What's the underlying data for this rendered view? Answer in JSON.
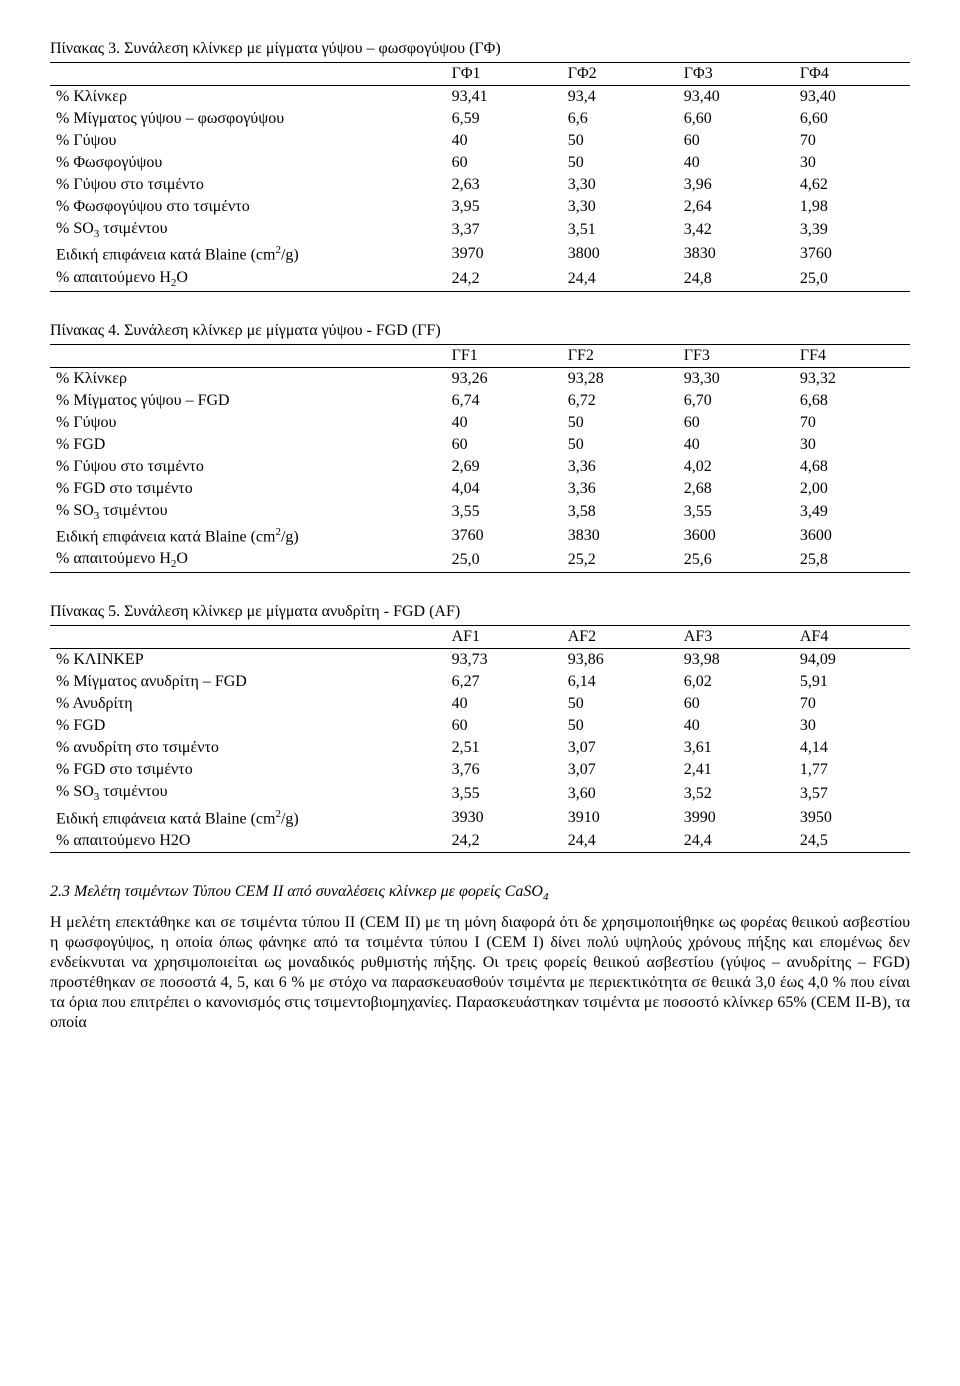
{
  "table3": {
    "title": "Πίνακας 3. Συνάλεση κλίνκερ με μίγματα γύψου – φωσφογύψου (ΓΦ)",
    "headers": [
      "ΓΦ1",
      "ΓΦ2",
      "ΓΦ3",
      "ΓΦ4"
    ],
    "rows": [
      {
        "label": "% Κλίνκερ",
        "v": [
          "93,41",
          "93,4",
          "93,40",
          "93,40"
        ]
      },
      {
        "label": "% Μίγματος γύψου – φωσφογύψου",
        "v": [
          "6,59",
          "6,6",
          "6,60",
          "6,60"
        ]
      },
      {
        "label": "% Γύψου",
        "v": [
          "40",
          "50",
          "60",
          "70"
        ]
      },
      {
        "label": "% Φωσφογύψου",
        "v": [
          "60",
          "50",
          "40",
          "30"
        ]
      },
      {
        "label": "% Γύψου στο τσιμέντο",
        "v": [
          "2,63",
          "3,30",
          "3,96",
          "4,62"
        ]
      },
      {
        "label": "% Φωσφογύψου στο τσιμέντο",
        "v": [
          "3,95",
          "3,30",
          "2,64",
          "1,98"
        ]
      },
      {
        "label_html": "so3",
        "v": [
          "3,37",
          "3,51",
          "3,42",
          "3,39"
        ]
      },
      {
        "label_html": "blaine",
        "v": [
          "3970",
          "3800",
          "3830",
          "3760"
        ]
      },
      {
        "label_html": "h2o",
        "v": [
          "24,2",
          "24,4",
          "24,8",
          "25,0"
        ]
      }
    ]
  },
  "table4": {
    "title": "Πίνακας 4. Συνάλεση κλίνκερ με μίγματα γύψου - FGD (ΓF)",
    "headers": [
      "ΓF1",
      "ΓF2",
      "ΓF3",
      "ΓF4"
    ],
    "rows": [
      {
        "label": "% Κλίνκερ",
        "v": [
          "93,26",
          "93,28",
          "93,30",
          "93,32"
        ]
      },
      {
        "label": "% Μίγματος γύψου – FGD",
        "v": [
          "6,74",
          "6,72",
          "6,70",
          "6,68"
        ]
      },
      {
        "label": "% Γύψου",
        "v": [
          "40",
          "50",
          "60",
          "70"
        ]
      },
      {
        "label": "% FGD",
        "v": [
          "60",
          "50",
          "40",
          "30"
        ]
      },
      {
        "label": "% Γύψου στο τσιμέντο",
        "v": [
          "2,69",
          "3,36",
          "4,02",
          "4,68"
        ]
      },
      {
        "label": "% FGD στο τσιμέντο",
        "v": [
          "4,04",
          "3,36",
          "2,68",
          "2,00"
        ]
      },
      {
        "label_html": "so3",
        "v": [
          "3,55",
          "3,58",
          "3,55",
          "3,49"
        ]
      },
      {
        "label_html": "blaine",
        "v": [
          "3760",
          "3830",
          "3600",
          "3600"
        ]
      },
      {
        "label_html": "h2o",
        "v": [
          "25,0",
          "25,2",
          "25,6",
          "25,8"
        ]
      }
    ]
  },
  "table5": {
    "title": "Πίνακας 5. Συνάλεση κλίνκερ με μίγματα ανυδρίτη - FGD (ΑF)",
    "headers": [
      "ΑF1",
      "ΑF2",
      "ΑF3",
      "ΑF4"
    ],
    "rows": [
      {
        "label": "% ΚΛΙΝΚΕΡ",
        "v": [
          "93,73",
          "93,86",
          "93,98",
          "94,09"
        ]
      },
      {
        "label": "% Μίγματος ανυδρίτη – FGD",
        "v": [
          "6,27",
          "6,14",
          "6,02",
          "5,91"
        ]
      },
      {
        "label": "% Ανυδρίτη",
        "v": [
          "40",
          "50",
          "60",
          "70"
        ]
      },
      {
        "label": "% FGD",
        "v": [
          "60",
          "50",
          "40",
          "30"
        ]
      },
      {
        "label": "% ανυδρίτη στο τσιμέντο",
        "v": [
          "2,51",
          "3,07",
          "3,61",
          "4,14"
        ]
      },
      {
        "label": "% FGD στο τσιμέντο",
        "v": [
          "3,76",
          "3,07",
          "2,41",
          "1,77"
        ]
      },
      {
        "label_html": "so3",
        "v": [
          "3,55",
          "3,60",
          "3,52",
          "3,57"
        ]
      },
      {
        "label_html": "blaine",
        "v": [
          "3930",
          "3910",
          "3990",
          "3950"
        ]
      },
      {
        "label": "% απαιτούμενο H2O",
        "v": [
          "24,2",
          "24,4",
          "24,4",
          "24,5"
        ]
      }
    ]
  },
  "labels_html": {
    "so3": "% SO<span class=\"sub\">3</span> τσιμέντου",
    "blaine": "Ειδική επιφάνεια κατά Blaine (cm<span class=\"sup\">2</span>/g)",
    "h2o": "% απαιτούμενο H<span class=\"sub\">2</span>O"
  },
  "section": {
    "title_html": "2.3 Μελέτη τσιμέντων Τύπου CEM II από συναλέσεις κλίνκερ με φορείς CaSO<span class=\"sub\">4</span>",
    "paragraph": "Η μελέτη επεκτάθηκε και σε τσιμέντα τύπου II (CEM II) με τη μόνη διαφορά ότι δε χρησιμοποιήθηκε ως φορέας θειικού ασβεστίου η φωσφογύψος, η οποία όπως φάνηκε από τα τσιμέντα τύπου I (CEM I) δίνει πολύ υψηλούς χρόνους πήξης και επομένως δεν ενδείκνυται να χρησιμοποιείται ως μοναδικός ρυθμιστής πήξης. Οι τρεις φορείς θειικού ασβεστίου (γύψος – ανυδρίτης – FGD) προστέθηκαν σε ποσοστά 4, 5, και 6 % με στόχο να παρασκευασθούν τσιμέντα με περιεκτικότητα σε θειικά 3,0 έως 4,0 % που είναι τα όρια που επιτρέπει ο κανονισμός στις τσιμεντοβιομηχανίες. Παρασκευάστηκαν τσιμέντα με ποσοστό κλίνκερ 65% (CEM ΙΙ-B), τα οποία"
  }
}
